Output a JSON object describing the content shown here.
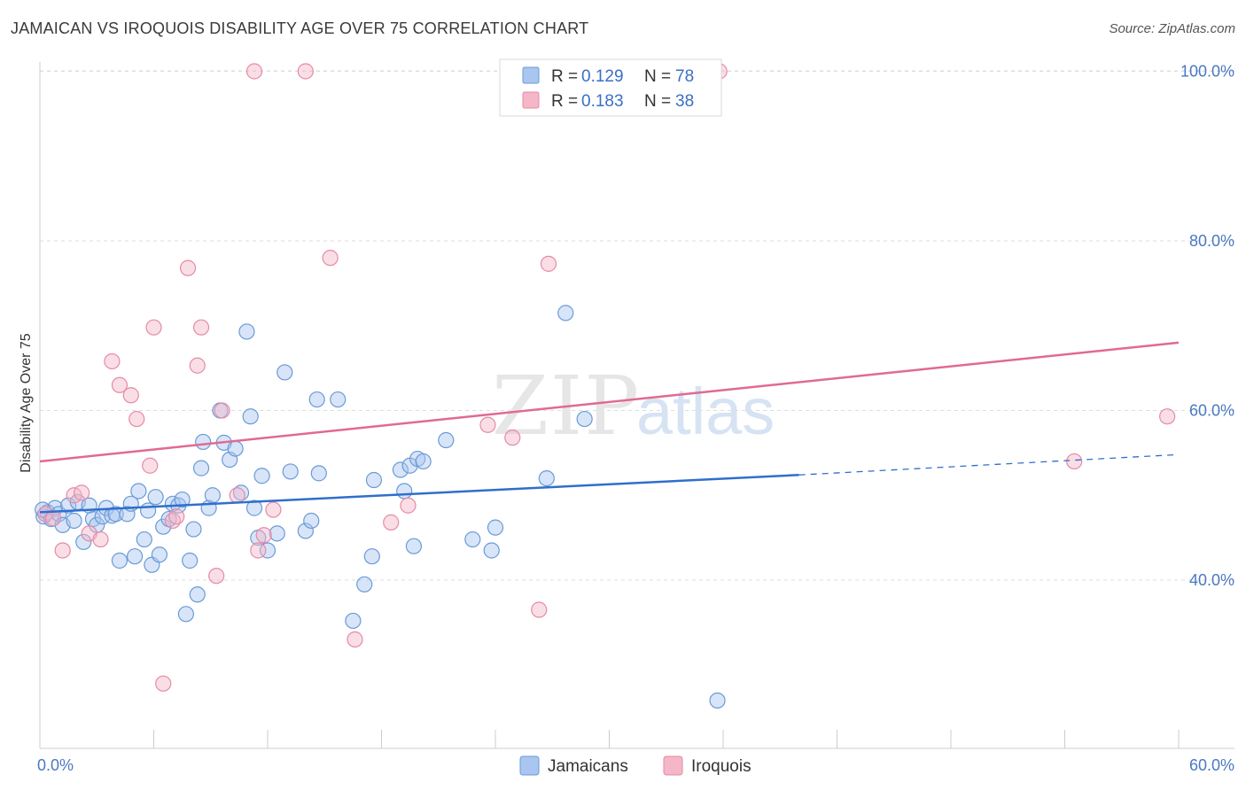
{
  "header": {
    "title": "JAMAICAN VS IROQUOIS DISABILITY AGE OVER 75 CORRELATION CHART",
    "source": "Source: ZipAtlas.com"
  },
  "watermark": {
    "zip": "ZIP",
    "atlas": "atlas"
  },
  "legend": {
    "rows": [
      {
        "r_label": "R =",
        "r_value": "0.129",
        "n_label": "N =",
        "n_value": "78",
        "color": "#a8c6ef"
      },
      {
        "r_label": "R =",
        "r_value": "0.183",
        "n_label": "N =",
        "n_value": "38",
        "color": "#f5b6c8"
      }
    ]
  },
  "colors": {
    "jamaicans_fill": "#a8c6ef",
    "jamaicans_stroke": "#6a9ad8",
    "jamaicans_line": "#2f6fcc",
    "iroquois_fill": "#f5b6c8",
    "iroquois_stroke": "#e58aa6",
    "iroquois_line": "#e06a92",
    "grid": "#dddddd",
    "tick_label": "#4a78c2"
  },
  "chart_data": {
    "type": "scatter",
    "title": "JAMAICAN VS IROQUOIS DISABILITY AGE OVER 75 CORRELATION CHART",
    "xlabel": "",
    "ylabel": "Disability Age Over 75",
    "xlim": [
      0,
      60
    ],
    "ylim": [
      20,
      103
    ],
    "x_tick_labels": [
      "0.0%",
      "60.0%"
    ],
    "y_ticks": [
      40,
      60,
      80,
      100
    ],
    "y_tick_labels": [
      "40.0%",
      "60.0%",
      "80.0%",
      "100.0%"
    ],
    "grid": true,
    "legend_position": "top-center",
    "series": [
      {
        "name": "Jamaicans",
        "r": 0.129,
        "n": 78,
        "trend": {
          "x": [
            0,
            40,
            60
          ],
          "y": [
            48.0,
            52.4,
            54.8
          ],
          "solid_until": 40
        },
        "points": [
          [
            0.2,
            47.5
          ],
          [
            0.4,
            48.0
          ],
          [
            0.6,
            47.2
          ],
          [
            0.8,
            48.5
          ],
          [
            1.0,
            47.8
          ],
          [
            1.2,
            46.5
          ],
          [
            1.5,
            48.8
          ],
          [
            1.8,
            47.0
          ],
          [
            2.0,
            49.2
          ],
          [
            2.3,
            44.5
          ],
          [
            2.6,
            48.8
          ],
          [
            2.8,
            47.2
          ],
          [
            3.0,
            46.5
          ],
          [
            3.3,
            47.5
          ],
          [
            3.5,
            48.5
          ],
          [
            3.8,
            47.6
          ],
          [
            4.0,
            47.8
          ],
          [
            4.2,
            42.3
          ],
          [
            4.6,
            47.8
          ],
          [
            4.8,
            49.0
          ],
          [
            5.0,
            42.8
          ],
          [
            5.2,
            50.5
          ],
          [
            5.5,
            44.8
          ],
          [
            5.7,
            48.2
          ],
          [
            5.9,
            41.8
          ],
          [
            6.1,
            49.8
          ],
          [
            6.3,
            43.0
          ],
          [
            6.5,
            46.3
          ],
          [
            6.8,
            47.2
          ],
          [
            7.0,
            49.0
          ],
          [
            7.3,
            48.8
          ],
          [
            7.5,
            49.5
          ],
          [
            7.7,
            36.0
          ],
          [
            7.9,
            42.3
          ],
          [
            8.1,
            46.0
          ],
          [
            8.3,
            38.3
          ],
          [
            8.5,
            53.2
          ],
          [
            8.6,
            56.3
          ],
          [
            8.9,
            48.5
          ],
          [
            9.1,
            50.0
          ],
          [
            9.5,
            60.0
          ],
          [
            9.7,
            56.2
          ],
          [
            10.0,
            54.2
          ],
          [
            10.3,
            55.5
          ],
          [
            10.6,
            50.3
          ],
          [
            10.9,
            69.3
          ],
          [
            11.1,
            59.3
          ],
          [
            11.3,
            48.5
          ],
          [
            11.5,
            45.0
          ],
          [
            11.7,
            52.3
          ],
          [
            12.0,
            43.5
          ],
          [
            12.5,
            45.5
          ],
          [
            12.9,
            64.5
          ],
          [
            13.2,
            52.8
          ],
          [
            14.0,
            45.8
          ],
          [
            14.3,
            47.0
          ],
          [
            14.6,
            61.3
          ],
          [
            14.7,
            52.6
          ],
          [
            15.7,
            61.3
          ],
          [
            16.5,
            35.2
          ],
          [
            17.1,
            39.5
          ],
          [
            17.5,
            42.8
          ],
          [
            17.6,
            51.8
          ],
          [
            19.0,
            53.0
          ],
          [
            19.2,
            50.5
          ],
          [
            19.5,
            53.5
          ],
          [
            19.7,
            44.0
          ],
          [
            19.9,
            54.3
          ],
          [
            20.2,
            54.0
          ],
          [
            21.4,
            56.5
          ],
          [
            22.8,
            44.8
          ],
          [
            23.8,
            43.5
          ],
          [
            24.0,
            46.2
          ],
          [
            26.7,
            52.0
          ],
          [
            27.7,
            71.5
          ],
          [
            28.7,
            59.0
          ],
          [
            35.7,
            25.8
          ],
          [
            0.15,
            48.3
          ]
        ]
      },
      {
        "name": "Iroquois",
        "r": 0.183,
        "n": 38,
        "trend": {
          "x": [
            0,
            60
          ],
          "y": [
            54.0,
            68.0
          ]
        },
        "points": [
          [
            0.3,
            47.8
          ],
          [
            0.7,
            47.3
          ],
          [
            1.2,
            43.5
          ],
          [
            1.8,
            50.0
          ],
          [
            2.2,
            50.3
          ],
          [
            2.6,
            45.5
          ],
          [
            3.2,
            44.8
          ],
          [
            3.8,
            65.8
          ],
          [
            4.2,
            63.0
          ],
          [
            4.8,
            61.8
          ],
          [
            5.1,
            59.0
          ],
          [
            5.8,
            53.5
          ],
          [
            6.0,
            69.8
          ],
          [
            6.5,
            27.8
          ],
          [
            7.0,
            47.0
          ],
          [
            7.2,
            47.5
          ],
          [
            7.8,
            76.8
          ],
          [
            8.3,
            65.3
          ],
          [
            8.5,
            69.8
          ],
          [
            9.3,
            40.5
          ],
          [
            9.6,
            60.0
          ],
          [
            10.4,
            50.0
          ],
          [
            11.3,
            100.0
          ],
          [
            11.5,
            43.5
          ],
          [
            11.8,
            45.3
          ],
          [
            12.3,
            48.3
          ],
          [
            14.0,
            100.0
          ],
          [
            15.3,
            78.0
          ],
          [
            16.6,
            33.0
          ],
          [
            18.5,
            46.8
          ],
          [
            19.4,
            48.8
          ],
          [
            23.6,
            58.3
          ],
          [
            24.9,
            56.8
          ],
          [
            26.3,
            36.5
          ],
          [
            26.8,
            77.3
          ],
          [
            35.8,
            100.0
          ],
          [
            54.5,
            54.0
          ],
          [
            59.4,
            59.3
          ]
        ]
      }
    ]
  },
  "bottom_legend": {
    "items": [
      {
        "label": "Jamaicans"
      },
      {
        "label": "Iroquois"
      }
    ]
  }
}
